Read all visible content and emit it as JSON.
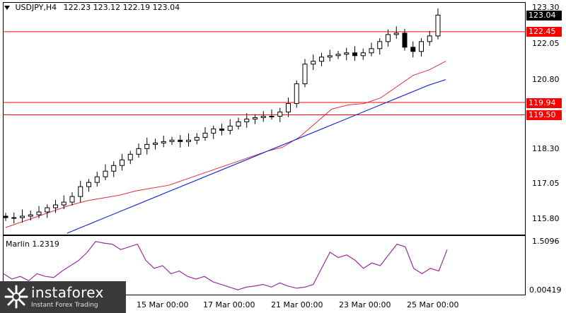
{
  "header": {
    "symbol": "USDJPY,H4",
    "ohlc": "122.23 123.12 122.19 123.04"
  },
  "price_axis": {
    "ticks": [
      "123.30",
      "122.05",
      "120.80",
      "118.30",
      "117.05",
      "115.80"
    ],
    "current_price": "123.04",
    "levels": [
      {
        "label": "122.45",
        "value": 122.45
      },
      {
        "label": "119.94",
        "value": 119.94
      },
      {
        "label": "119.50",
        "value": 119.5
      }
    ]
  },
  "oscillator": {
    "name": "Marlin 1.2319",
    "top_label": "1.5096",
    "bottom_label": "0.00419"
  },
  "time_axis": {
    "labels": [
      "15 Mar 00:00",
      "17 Mar 00:00",
      "21 Mar 00:00",
      "23 Mar 00:00",
      "25 Mar 00:00"
    ]
  },
  "logo": {
    "brand": "instaforex",
    "tagline": "Instant Forex Trading"
  },
  "colors": {
    "candle": "#000000",
    "level_line": "#ff0000",
    "level_tag_bg": "#ff0000",
    "ma_fast": "#e0303a",
    "ma_slow": "#1a2cd8",
    "oscillator": "#9a2fa0",
    "price_tag_bg": "#000000"
  },
  "chart_data": {
    "type": "candlestick",
    "title": "USDJPY,H4",
    "ylim": [
      115.3,
      123.5
    ],
    "candles_close_approx": [
      115.85,
      115.85,
      115.9,
      115.95,
      116.05,
      116.2,
      116.3,
      116.4,
      116.6,
      116.95,
      117.1,
      117.3,
      117.5,
      117.7,
      117.9,
      118.1,
      118.3,
      118.45,
      118.5,
      118.55,
      118.6,
      118.55,
      118.6,
      118.7,
      118.85,
      119.0,
      118.95,
      119.1,
      119.25,
      119.35,
      119.4,
      119.45,
      119.45,
      119.6,
      119.9,
      120.6,
      121.3,
      121.4,
      121.55,
      121.6,
      121.65,
      121.7,
      121.6,
      121.7,
      121.85,
      122.1,
      122.35,
      122.4,
      121.9,
      121.75,
      122.1,
      122.3,
      123.04
    ],
    "series": [
      {
        "name": "MA fast",
        "values_approx": [
          115.5,
          115.7,
          115.9,
          116.1,
          116.3,
          116.45,
          116.55,
          116.65,
          116.8,
          116.9,
          117.0,
          117.2,
          117.4,
          117.6,
          117.8,
          118.0,
          118.2,
          118.35,
          118.7,
          119.2,
          119.7,
          119.85,
          119.9,
          120.1,
          120.5,
          120.9,
          121.1,
          121.4
        ]
      },
      {
        "name": "MA slow",
        "values_approx": [
          115.3,
          115.55,
          115.8,
          116.05,
          116.3,
          116.55,
          116.8,
          117.05,
          117.3,
          117.55,
          117.8,
          118.05,
          118.3,
          118.55,
          118.8,
          119.05,
          119.3,
          119.55,
          119.8,
          120.05,
          120.3,
          120.55,
          120.75
        ]
      }
    ],
    "oscillator": {
      "name": "Marlin 1.2319",
      "ylim": [
        0.00419,
        1.5096
      ]
    }
  }
}
